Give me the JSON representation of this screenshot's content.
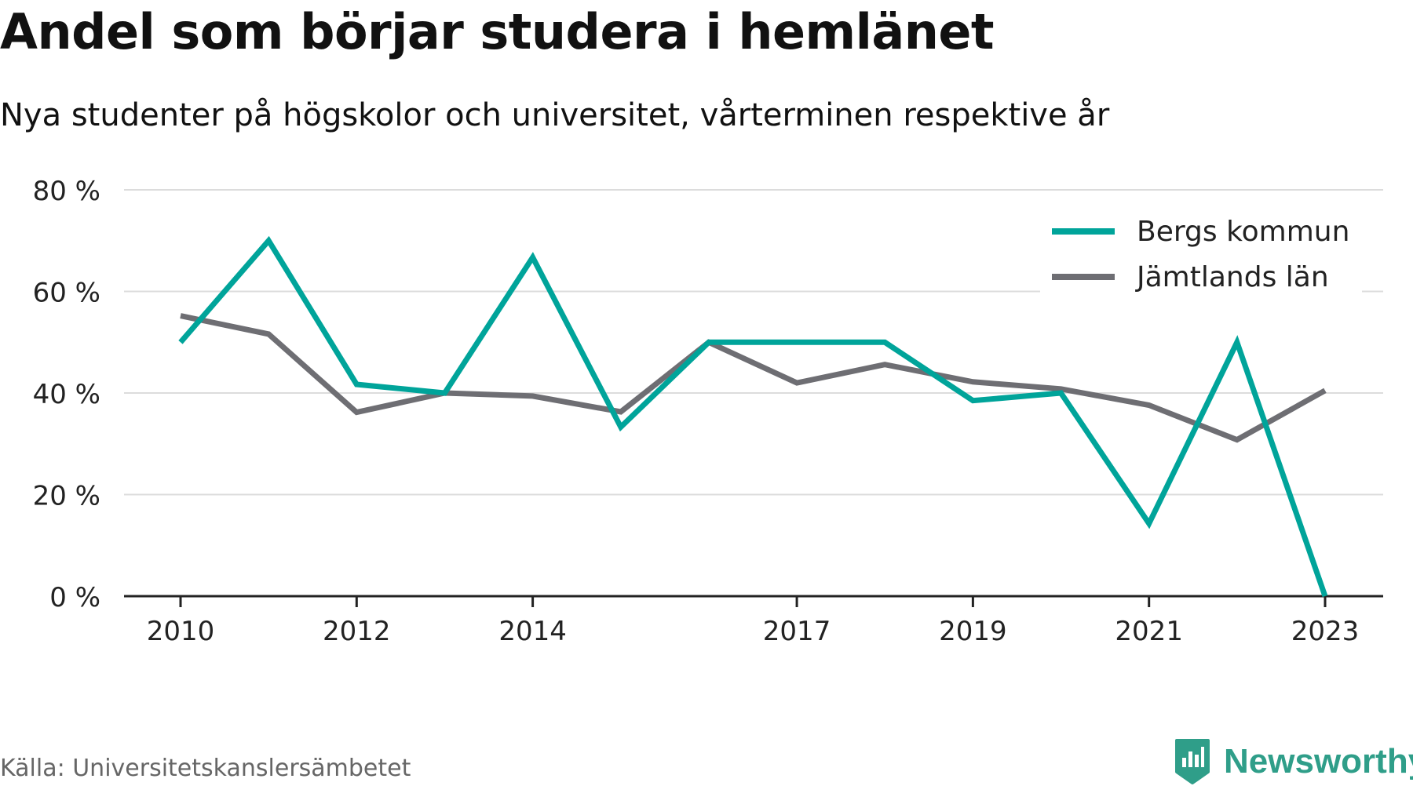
{
  "title": "Andel som börjar studera i hemlänet",
  "subtitle": "Nya studenter på högskolor och universitet, vårterminen respektive år",
  "source": "Källa: Universitetskanslersämbetet",
  "brand": {
    "name": "Newsworthy",
    "icon": "newsworthy-logo-icon",
    "color": "#2f9e89"
  },
  "chart_data": {
    "type": "line",
    "x": [
      2010,
      2011,
      2012,
      2013,
      2014,
      2015,
      2016,
      2017,
      2018,
      2019,
      2020,
      2021,
      2022,
      2023
    ],
    "x_ticks": [
      2010,
      2012,
      2014,
      2017,
      2019,
      2021,
      2023
    ],
    "x_tick_labels": [
      "2010",
      "2012",
      "2014",
      "2017",
      "2019",
      "2021",
      "2023"
    ],
    "ylim": [
      0,
      80
    ],
    "y_ticks": [
      0,
      20,
      40,
      60,
      80
    ],
    "y_tick_labels": [
      "0 %",
      "20 %",
      "40 %",
      "60 %",
      "80 %"
    ],
    "grid": true,
    "legend_position": "top-right",
    "series": [
      {
        "name": "Bergs kommun",
        "color": "#00a49a",
        "values": [
          50,
          70,
          41.7,
          40,
          66.7,
          33.3,
          50,
          50,
          50,
          38.5,
          40,
          14.3,
          50,
          0
        ]
      },
      {
        "name": "Jämtlands län",
        "color": "#6e6e73",
        "values": [
          55.2,
          51.6,
          36.2,
          40,
          39.4,
          36.3,
          50,
          42,
          45.6,
          42.2,
          40.8,
          37.6,
          30.8,
          40.5
        ]
      }
    ]
  }
}
